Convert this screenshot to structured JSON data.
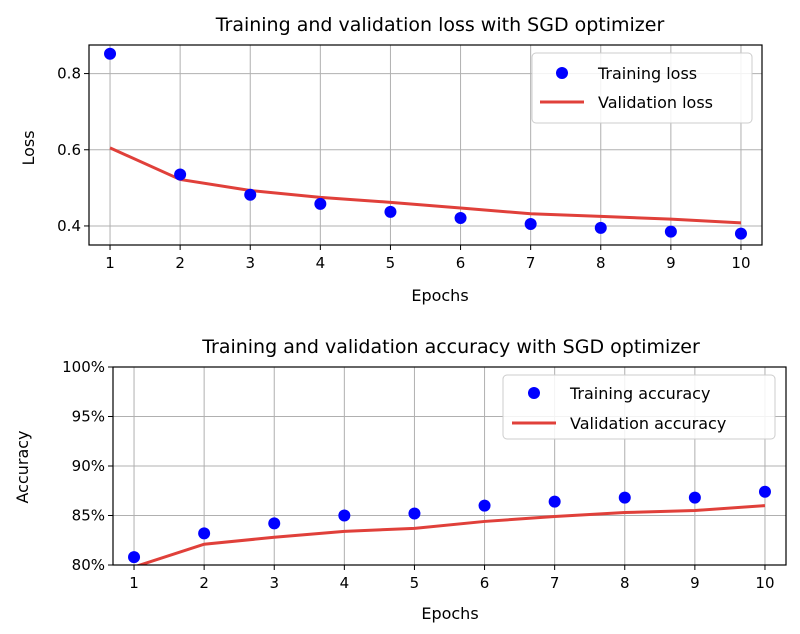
{
  "chart_data": [
    {
      "type": "line",
      "title": "Training and validation loss with SGD optimizer",
      "xlabel": "Epochs",
      "ylabel": "Loss",
      "x": [
        1,
        2,
        3,
        4,
        5,
        6,
        7,
        8,
        9,
        10
      ],
      "xlim": [
        0.7,
        10.3
      ],
      "ylim": [
        0.35,
        0.875
      ],
      "xticks": [
        "1",
        "2",
        "3",
        "4",
        "5",
        "6",
        "7",
        "8",
        "9",
        "10"
      ],
      "yticks": [
        0.4,
        0.6,
        0.8
      ],
      "ytick_labels": [
        "0.4",
        "0.6",
        "0.8"
      ],
      "grid": true,
      "legend_position": "top-right",
      "series": [
        {
          "name": "Training loss",
          "style": "scatter",
          "color": "#0000ff",
          "values": [
            0.852,
            0.535,
            0.482,
            0.458,
            0.437,
            0.421,
            0.405,
            0.395,
            0.385,
            0.38
          ]
        },
        {
          "name": "Validation loss",
          "style": "line",
          "color": "#e0403a",
          "values": [
            0.605,
            0.522,
            0.493,
            0.475,
            0.462,
            0.447,
            0.432,
            0.425,
            0.418,
            0.408
          ]
        }
      ]
    },
    {
      "type": "line",
      "title": "Training and validation accuracy with SGD optimizer",
      "xlabel": "Epochs",
      "ylabel": "Accuracy",
      "x": [
        1,
        2,
        3,
        4,
        5,
        6,
        7,
        8,
        9,
        10
      ],
      "xlim": [
        0.7,
        10.3
      ],
      "ylim": [
        80,
        100
      ],
      "xticks": [
        "1",
        "2",
        "3",
        "4",
        "5",
        "6",
        "7",
        "8",
        "9",
        "10"
      ],
      "yticks": [
        80,
        85,
        90,
        95,
        100
      ],
      "ytick_labels": [
        "80%",
        "85%",
        "90%",
        "95%",
        "100%"
      ],
      "grid": true,
      "legend_position": "top-right",
      "series": [
        {
          "name": "Training accuracy",
          "style": "scatter",
          "color": "#0000ff",
          "values": [
            80.8,
            83.2,
            84.2,
            85.0,
            85.2,
            86.0,
            86.4,
            86.8,
            86.8,
            87.4
          ]
        },
        {
          "name": "Validation accuracy",
          "style": "line",
          "color": "#e0403a",
          "values": [
            79.8,
            82.1,
            82.8,
            83.4,
            83.7,
            84.4,
            84.9,
            85.3,
            85.5,
            86.0
          ]
        }
      ]
    }
  ]
}
